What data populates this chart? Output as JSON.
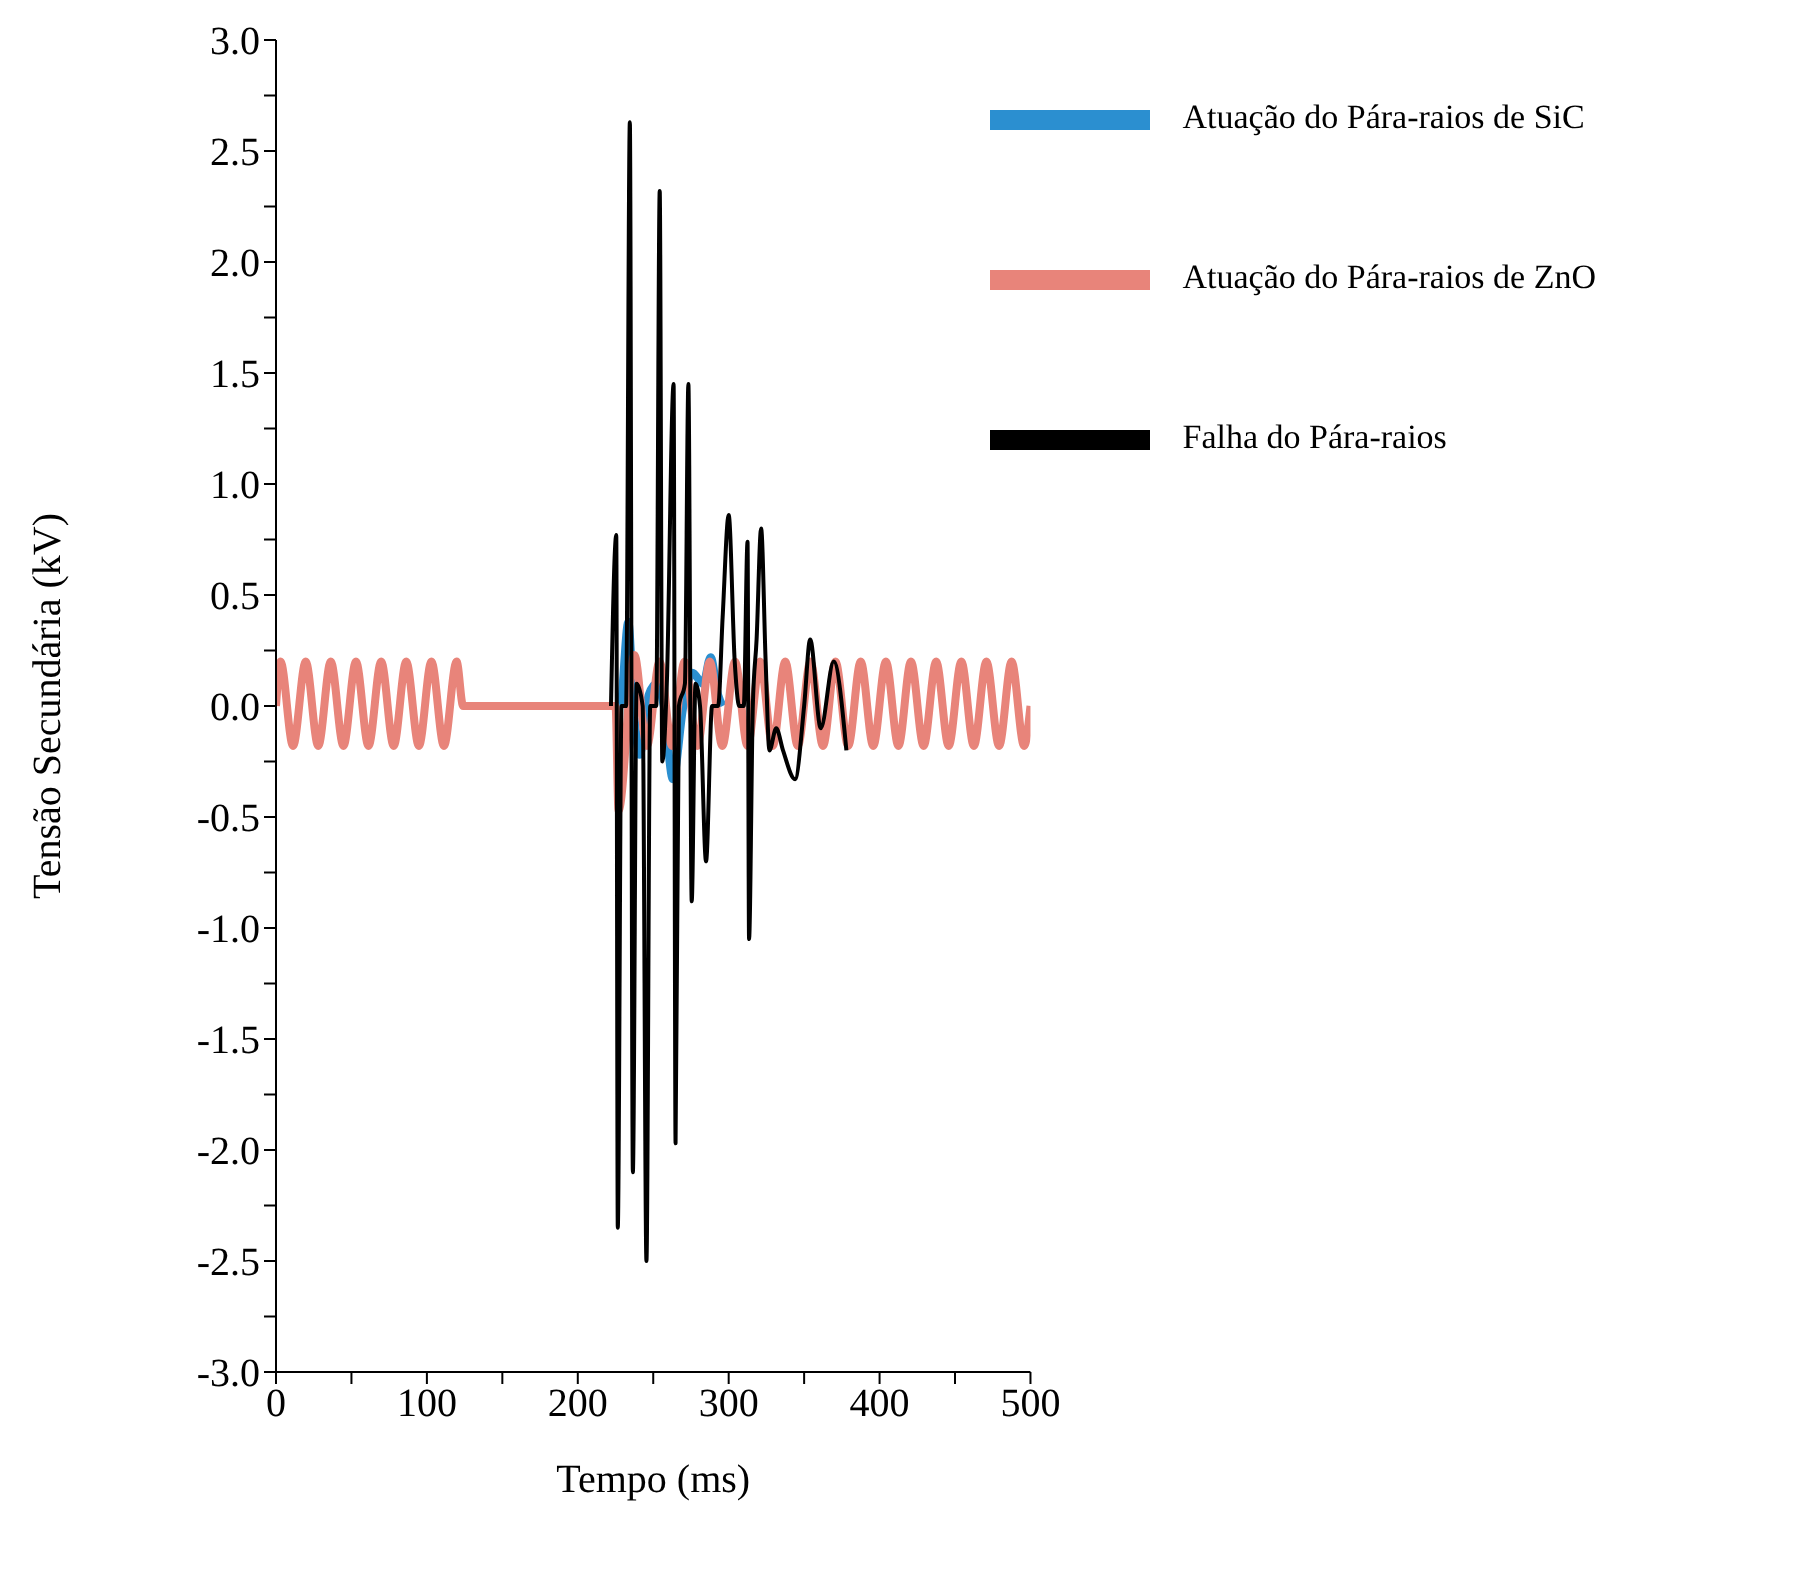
{
  "chart_data": {
    "type": "line",
    "xlabel": "Tempo (ms)",
    "ylabel": "Tensão Secundária (kV)",
    "xlim": [
      0,
      500
    ],
    "ylim": [
      -3,
      3
    ],
    "xticks": [
      0,
      {
        "value": 50,
        "label": null
      },
      100,
      {
        "value": 150,
        "label": null
      },
      200,
      {
        "value": 250,
        "label": null
      },
      300,
      {
        "value": 350,
        "label": null
      },
      400,
      {
        "value": 450,
        "label": null
      },
      500
    ],
    "yticks": [
      {
        "value": -3,
        "label": "-3.0"
      },
      {
        "value": -2.75,
        "label": null
      },
      {
        "value": -2.5,
        "label": "-2.5"
      },
      {
        "value": -2.25,
        "label": null
      },
      {
        "value": -2,
        "label": "-2.0"
      },
      {
        "value": -1.75,
        "label": null
      },
      {
        "value": -1.5,
        "label": "-1.5"
      },
      {
        "value": -1.25,
        "label": null
      },
      {
        "value": -1,
        "label": "-1.0"
      },
      {
        "value": -0.75,
        "label": null
      },
      {
        "value": -0.5,
        "label": "-0.5"
      },
      {
        "value": -0.25,
        "label": null
      },
      {
        "value": 0,
        "label": "0.0"
      },
      {
        "value": 0.25,
        "label": null
      },
      {
        "value": 0.5,
        "label": "0.5"
      },
      {
        "value": 0.75,
        "label": null
      },
      {
        "value": 1,
        "label": "1.0"
      },
      {
        "value": 1.25,
        "label": null
      },
      {
        "value": 1.5,
        "label": "1.5"
      },
      {
        "value": 1.75,
        "label": null
      },
      {
        "value": 2,
        "label": "2.0"
      },
      {
        "value": 2.25,
        "label": null
      },
      {
        "value": 2.5,
        "label": "2.5"
      },
      {
        "value": 2.75,
        "label": null
      },
      {
        "value": 3,
        "label": "3.0"
      }
    ],
    "grid": false,
    "legend": "top right",
    "marker": "none",
    "series": [
      {
        "name": "Atuação do Pára-raios de SiC",
        "color": "#2b8fd0",
        "x": [
          222,
          228,
          233.5,
          237,
          241,
          247,
          252,
          257,
          263,
          270,
          276,
          283,
          288,
          293,
          296
        ],
        "values": [
          0,
          0,
          0.38,
          0,
          -0.22,
          0.05,
          0.1,
          0,
          -0.33,
          0,
          0.15,
          0.1,
          0.22,
          0.05,
          0
        ]
      },
      {
        "name": "Atuação do Pára-raios de ZnO",
        "color": "#e8847a",
        "x": [
          0,
          3,
          11.3,
          19.7,
          28,
          36.3,
          44.7,
          53,
          61.3,
          69.7,
          78,
          86.3,
          94.7,
          103,
          111.3,
          119.7,
          124,
          225,
          227,
          237.5,
          245.8,
          254.2,
          262.5,
          270.8,
          279.2,
          287.5,
          295.8,
          304.2,
          312.5,
          320.8,
          329.2,
          337.5,
          345.8,
          354.2,
          362.5,
          370.8,
          379.2,
          387.5,
          395.8,
          404.2,
          412.5,
          420.8,
          429.2,
          437.5,
          445.8,
          454.2,
          462.5,
          470.8,
          479.2,
          487.5,
          495.8,
          500
        ],
        "values": [
          0,
          0.2,
          -0.18,
          0.2,
          -0.18,
          0.2,
          -0.18,
          0.2,
          -0.18,
          0.2,
          -0.18,
          0.2,
          -0.18,
          0.2,
          -0.18,
          0.2,
          0,
          0,
          -0.47,
          0.23,
          -0.18,
          0.2,
          -0.18,
          0.2,
          -0.18,
          0.2,
          -0.18,
          0.2,
          -0.18,
          0.2,
          -0.18,
          0.2,
          -0.18,
          0.2,
          -0.18,
          0.2,
          -0.18,
          0.2,
          -0.18,
          0.2,
          -0.18,
          0.2,
          -0.18,
          0.2,
          -0.18,
          0.2,
          -0.18,
          0.2,
          -0.18,
          0.2,
          -0.18,
          0
        ]
      },
      {
        "name": "Falha do Pára-raios",
        "color": "#000000",
        "x": [
          222,
          225.5,
          226.5,
          229,
          232,
          234.5,
          236.5,
          239,
          243,
          245.5,
          248,
          252,
          254.3,
          256,
          259,
          263.5,
          264.8,
          267,
          271,
          273.3,
          275.5,
          278,
          281,
          285,
          289,
          293,
          296,
          300,
          304,
          307,
          310,
          312.5,
          313.5,
          316,
          318.5,
          321.5,
          324.5,
          327,
          331.5,
          336,
          344,
          350,
          354,
          361,
          369.6,
          378
        ],
        "values": [
          0,
          0.77,
          -2.35,
          0,
          0,
          2.63,
          -2.1,
          0.1,
          0,
          -2.5,
          0,
          0,
          2.32,
          -0.25,
          0.1,
          1.45,
          -1.97,
          0,
          0.1,
          1.45,
          -0.88,
          0.1,
          0,
          -0.7,
          0,
          0,
          0.4,
          0.86,
          0.2,
          0,
          0,
          0.74,
          -1.05,
          0,
          0.3,
          0.8,
          0.2,
          -0.2,
          -0.1,
          -0.2,
          -0.33,
          0,
          0.3,
          -0.1,
          0.2,
          -0.2
        ]
      }
    ]
  }
}
